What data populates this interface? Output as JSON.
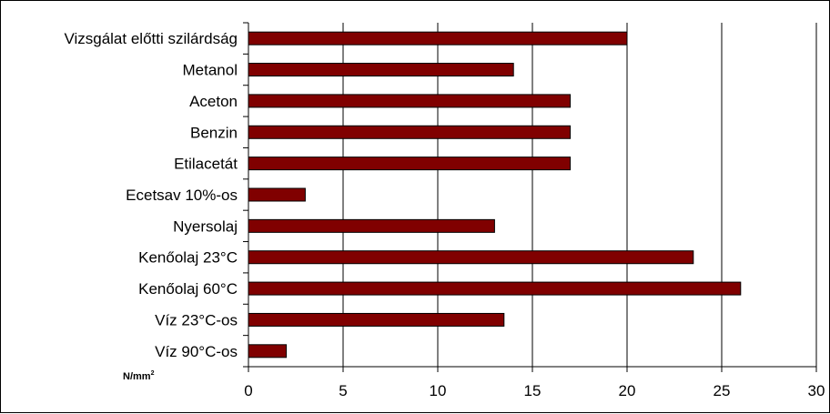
{
  "chart_data": {
    "type": "bar",
    "orientation": "horizontal",
    "categories": [
      "Vizsgálat előtti szilárdság",
      "Metanol",
      "Aceton",
      "Benzin",
      "Etilacetát",
      "Ecetsav 10%-os",
      "Nyersolaj",
      "Kenőolaj 23°C",
      "Kenőolaj 60°C",
      "Víz 23°C-os",
      "Víz 90°C-os"
    ],
    "values": [
      20,
      14,
      17,
      17,
      17,
      3,
      13,
      23.5,
      26,
      13.5,
      2
    ],
    "xlim": [
      0,
      30
    ],
    "xticks": [
      "0",
      "5",
      "10",
      "15",
      "20",
      "25",
      "30"
    ],
    "unit_label": {
      "text": "N/mm",
      "superscript": "2"
    },
    "bar_color": "#800000",
    "bar_edge_color": "#000000",
    "grid": "vertical",
    "legend": "none"
  }
}
